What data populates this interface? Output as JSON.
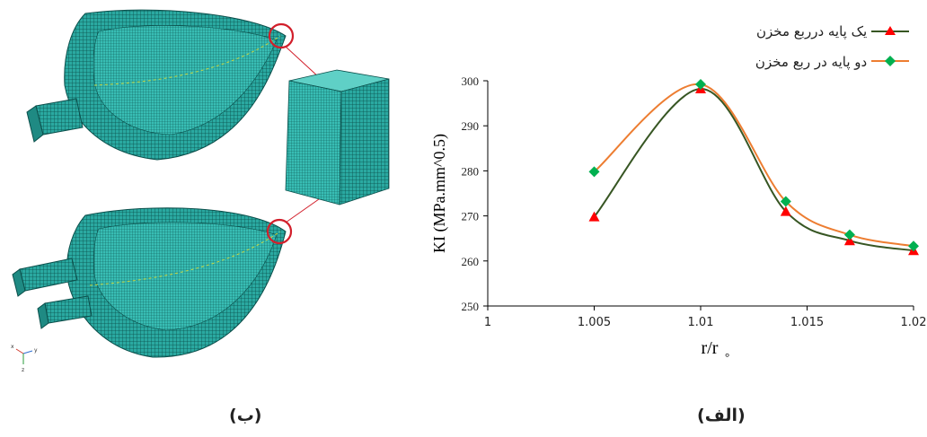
{
  "captions": {
    "left": "(ب)",
    "right": "(الف)"
  },
  "axis_triad": {
    "x": "x",
    "y": "y",
    "z": "z"
  },
  "chart_data": {
    "type": "line",
    "title": "",
    "xlabel": "r/r",
    "xlabel_subscript": "°",
    "ylabel": "KI (MPa.mm^0.5)",
    "xlim": [
      1,
      1.02
    ],
    "ylim": [
      250,
      300
    ],
    "x_ticks": [
      "1",
      "1.005",
      "1.01",
      "1.015",
      "1.02"
    ],
    "y_ticks": [
      "250",
      "260",
      "270",
      "280",
      "290",
      "300"
    ],
    "grid": false,
    "legend_position": "top-right",
    "series": [
      {
        "name": "یک پایه درربع مخزن",
        "color": "#375623",
        "marker": "triangle",
        "marker_color": "#ff0000",
        "x": [
          1.005,
          1.01,
          1.014,
          1.017,
          1.02
        ],
        "y": [
          269.8,
          298.2,
          271.0,
          264.5,
          262.3
        ]
      },
      {
        "name": "دو پایه در ربع مخزن",
        "color": "#ed7d31",
        "marker": "diamond",
        "marker_color": "#00b050",
        "x": [
          1.005,
          1.01,
          1.014,
          1.017,
          1.02
        ],
        "y": [
          279.8,
          299.2,
          273.2,
          265.8,
          263.3
        ]
      }
    ]
  }
}
